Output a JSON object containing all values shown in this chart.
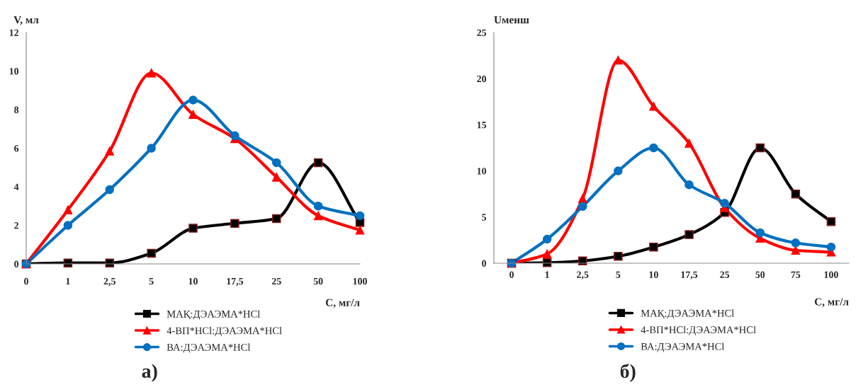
{
  "chart_data": [
    {
      "type": "line",
      "ylabel": "V, мл",
      "xlabel": "С, мг/л",
      "annotations": [
        "а)"
      ],
      "categories": [
        "0",
        "1",
        "2,5",
        "5",
        "10",
        "17,5",
        "25",
        "50",
        "100"
      ],
      "ylim": [
        0,
        12
      ],
      "yticks": [
        0,
        2,
        4,
        6,
        8,
        10,
        12
      ],
      "grid": false,
      "legend": "bottom",
      "series": [
        {
          "name": "МАҚ:ДЭАЭМА*HCl",
          "color": "#000000",
          "marker": "square",
          "values": [
            0,
            0.05,
            0.05,
            0.55,
            1.85,
            2.1,
            2.35,
            5.25,
            2.15
          ]
        },
        {
          "name": "4-ВП*HCl:ДЭАЭМА*HCl",
          "color": "#ff0000",
          "marker": "triangle",
          "values": [
            0,
            2.8,
            5.85,
            9.9,
            7.75,
            6.5,
            4.5,
            2.5,
            1.75
          ]
        },
        {
          "name": "ВА:ДЭАЭМА*HCl",
          "color": "#0070c0",
          "marker": "circle",
          "values": [
            0,
            2.0,
            3.85,
            6.0,
            8.5,
            6.65,
            5.25,
            3.0,
            2.5
          ]
        }
      ]
    },
    {
      "type": "line",
      "ylabel": "Uменш",
      "xlabel": "С, мг/л",
      "annotations": [
        "б)"
      ],
      "categories": [
        "0",
        "1",
        "2,5",
        "5",
        "10",
        "17,5",
        "25",
        "50",
        "75",
        "100"
      ],
      "ylim": [
        0,
        25
      ],
      "yticks": [
        0,
        5,
        10,
        15,
        20,
        25
      ],
      "grid": false,
      "legend": "bottom",
      "series": [
        {
          "name": "МАҚ:ДЭАЭМА*HCl",
          "color": "#000000",
          "marker": "square",
          "values": [
            0,
            0.05,
            0.25,
            0.75,
            1.75,
            3.1,
            5.5,
            12.5,
            7.5,
            4.5
          ]
        },
        {
          "name": "4-ВП*HCl:ДЭАЭМА*HCl",
          "color": "#ff0000",
          "marker": "triangle",
          "values": [
            0,
            1.0,
            7.0,
            22.0,
            17.0,
            13.0,
            6.0,
            2.7,
            1.4,
            1.2
          ]
        },
        {
          "name": "ВА:ДЭАЭМА*HCl",
          "color": "#0070c0",
          "marker": "circle",
          "values": [
            0,
            2.6,
            6.15,
            10.0,
            12.5,
            8.5,
            6.5,
            3.3,
            2.2,
            1.75
          ]
        }
      ]
    }
  ]
}
